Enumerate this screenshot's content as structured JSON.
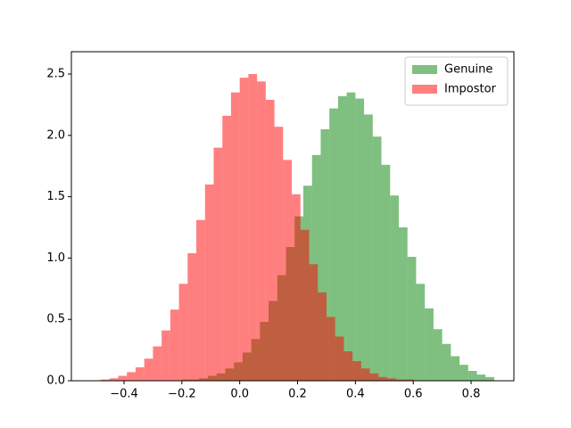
{
  "chart_data": {
    "type": "histogram",
    "xlim": [
      -0.582,
      0.948
    ],
    "ylim": [
      0,
      2.682
    ],
    "xticks": [
      {
        "value": -0.4,
        "label": "−0.4"
      },
      {
        "value": -0.2,
        "label": "−0.2"
      },
      {
        "value": 0.0,
        "label": "0.0"
      },
      0.2,
      0.4,
      0.6,
      0.8
    ],
    "yticks": [
      {
        "value": 0,
        "label": "0.0"
      },
      0.5,
      {
        "value": 1,
        "label": "1.0"
      },
      1.5,
      {
        "value": 2,
        "label": "2.0"
      },
      2.5
    ],
    "legend": "upper right",
    "series": [
      {
        "name": "Genuine",
        "color": "green",
        "bins": [
          -0.5,
          -0.47,
          -0.44,
          -0.41,
          -0.38,
          -0.35,
          -0.32,
          -0.29,
          -0.26,
          -0.23,
          -0.2,
          -0.17,
          -0.14,
          -0.11,
          -0.08,
          -0.05,
          -0.02,
          0.01,
          0.04,
          0.07,
          0.1,
          0.13,
          0.16,
          0.19,
          0.22,
          0.25,
          0.28,
          0.31,
          0.34,
          0.37,
          0.4,
          0.43,
          0.46,
          0.49,
          0.52,
          0.55,
          0.58,
          0.61,
          0.64,
          0.67,
          0.7,
          0.73,
          0.76,
          0.79,
          0.82,
          0.85,
          0.88
        ],
        "values": [
          0,
          0,
          0,
          0,
          0,
          0,
          0,
          0,
          0,
          0,
          0.01,
          0.01,
          0.02,
          0.04,
          0.06,
          0.1,
          0.15,
          0.23,
          0.34,
          0.48,
          0.65,
          0.86,
          1.09,
          1.34,
          1.59,
          1.84,
          2.05,
          2.22,
          2.32,
          2.35,
          2.3,
          2.17,
          1.99,
          1.76,
          1.51,
          1.25,
          1.01,
          0.79,
          0.59,
          0.42,
          0.3,
          0.2,
          0.13,
          0.08,
          0.05,
          0.03
        ]
      },
      {
        "name": "Impostor",
        "color": "red",
        "bins": [
          -0.48,
          -0.45,
          -0.42,
          -0.39,
          -0.36,
          -0.33,
          -0.3,
          -0.27,
          -0.24,
          -0.21,
          -0.18,
          -0.15,
          -0.12,
          -0.09,
          -0.06,
          -0.03,
          0,
          0.03,
          0.06,
          0.09,
          0.12,
          0.15,
          0.18,
          0.21,
          0.24,
          0.27,
          0.3,
          0.33,
          0.36,
          0.39,
          0.42,
          0.45,
          0.48,
          0.51,
          0.54,
          0.57,
          0.6,
          0.63,
          0.66,
          0.69,
          0.72
        ],
        "values": [
          0.01,
          0.02,
          0.04,
          0.07,
          0.11,
          0.18,
          0.28,
          0.41,
          0.58,
          0.79,
          1.04,
          1.31,
          1.6,
          1.9,
          2.16,
          2.35,
          2.47,
          2.5,
          2.44,
          2.29,
          2.07,
          1.8,
          1.52,
          1.23,
          0.95,
          0.72,
          0.52,
          0.36,
          0.24,
          0.16,
          0.1,
          0.06,
          0.03,
          0.02,
          0.01,
          0.01,
          0,
          0,
          0,
          0
        ]
      }
    ]
  }
}
